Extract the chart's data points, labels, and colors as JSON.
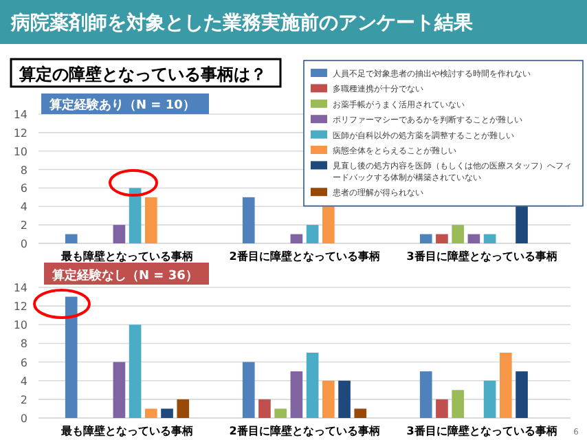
{
  "chart_data": [
    {
      "type": "bar",
      "title": "病院薬剤師を対象とした業務実施前のアンケート結果",
      "subtitle": "算定の障壁となっている事柄は？",
      "annotations": [
        "算定経験あり（N = 10）"
      ],
      "categories": [
        "最も障壁となっている事柄",
        "2番目に障壁となっている事柄",
        "3番目に障壁となっている事柄"
      ],
      "ylim": [
        0,
        14
      ],
      "yticks": [
        0,
        2,
        4,
        6,
        8,
        10,
        12,
        14
      ],
      "grid": "y",
      "legend": "top right",
      "series": [
        {
          "name": "人員不足で対象患者の抽出や検討する時間を作れない",
          "color": "#4f81bd",
          "values": [
            1,
            5,
            1
          ]
        },
        {
          "name": "多職種連携が十分でない",
          "color": "#c0504d",
          "values": [
            0,
            0,
            1
          ]
        },
        {
          "name": "お薬手帳がうまく活用されていない",
          "color": "#9bbb59",
          "values": [
            0,
            0,
            2
          ]
        },
        {
          "name": "ポリファーマシーであるかを判断することが難しい",
          "color": "#8064a2",
          "values": [
            2,
            1,
            1
          ]
        },
        {
          "name": "医師が自科以外の処方薬を調整することが難しい",
          "color": "#4bacc6",
          "values": [
            6,
            2,
            1
          ]
        },
        {
          "name": "病態全体をとらえることが難しい",
          "color": "#f79646",
          "values": [
            5,
            4,
            0
          ]
        },
        {
          "name": "見直し後の処方内容を医師（もしくは他の医療スタッフ）へフィードバックする体制が構築されていない",
          "color": "#1f497d",
          "values": [
            0,
            0,
            4
          ]
        },
        {
          "name": "患者の理解が得られない",
          "color": "#984807",
          "values": [
            0,
            0,
            0
          ]
        }
      ]
    },
    {
      "type": "bar",
      "annotations": [
        "算定経験なし（N = 36）",
        "6"
      ],
      "categories": [
        "最も障壁となっている事柄",
        "2番目に障壁となっている事柄",
        "3番目に障壁となっている事柄"
      ],
      "ylim": [
        0,
        14
      ],
      "yticks": [
        0,
        2,
        4,
        6,
        8,
        10,
        12,
        14
      ],
      "grid": "y",
      "series": [
        {
          "color": "#4f81bd",
          "values": [
            13,
            6,
            5
          ]
        },
        {
          "color": "#c0504d",
          "values": [
            0,
            2,
            2
          ]
        },
        {
          "color": "#9bbb59",
          "values": [
            0,
            1,
            3
          ]
        },
        {
          "color": "#8064a2",
          "values": [
            6,
            5,
            0
          ]
        },
        {
          "color": "#4bacc6",
          "values": [
            10,
            7,
            4
          ]
        },
        {
          "color": "#f79646",
          "values": [
            1,
            4,
            7
          ]
        },
        {
          "color": "#1f497d",
          "values": [
            1,
            4,
            5
          ]
        },
        {
          "color": "#984807",
          "values": [
            2,
            1,
            0
          ]
        }
      ]
    }
  ]
}
